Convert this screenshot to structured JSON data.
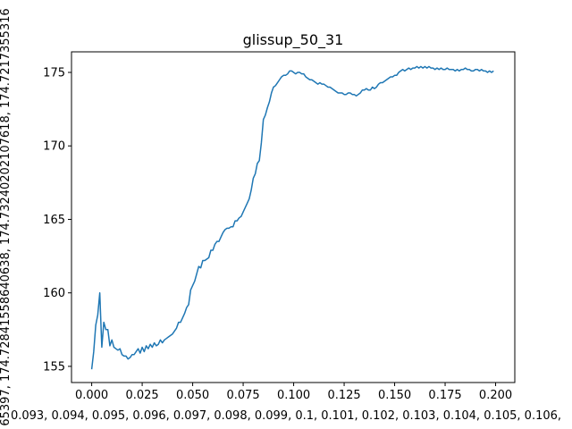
{
  "chart_data": {
    "type": "line",
    "title": "glissup_50_31",
    "xlabel": "0.093, 0.094, 0.095, 0.096, 0.097, 0.098, 0.099, 0.1, 0.101, 0.102, 0.103, 0.104, 0.105, 0.106,",
    "ylabel": "65397, 174.72841558640638, 174.73240202107618, 174.7217355316",
    "xlim": [
      -0.01,
      0.2095
    ],
    "ylim": [
      153.9,
      176.4
    ],
    "xticks": [
      "0.000",
      "0.025",
      "0.050",
      "0.075",
      "0.100",
      "0.125",
      "0.150",
      "0.175",
      "0.200"
    ],
    "yticks": [
      "155",
      "160",
      "165",
      "170",
      "175"
    ],
    "grid": false,
    "color": "#1f77b4",
    "series": [
      {
        "x": [
          0.0,
          0.001,
          0.002,
          0.003,
          0.004,
          0.005,
          0.006,
          0.007,
          0.008,
          0.009,
          0.01,
          0.011,
          0.012,
          0.013,
          0.014,
          0.015,
          0.016,
          0.017,
          0.018,
          0.019,
          0.02,
          0.021,
          0.022,
          0.023,
          0.024,
          0.025,
          0.026,
          0.027,
          0.028,
          0.029,
          0.03,
          0.031,
          0.032,
          0.033,
          0.034,
          0.035,
          0.036,
          0.037,
          0.038,
          0.039,
          0.04,
          0.041,
          0.042,
          0.043,
          0.044,
          0.045,
          0.046,
          0.047,
          0.048,
          0.049,
          0.05,
          0.051,
          0.052,
          0.053,
          0.054,
          0.055,
          0.056,
          0.057,
          0.058,
          0.059,
          0.06,
          0.061,
          0.062,
          0.063,
          0.064,
          0.065,
          0.066,
          0.067,
          0.068,
          0.069,
          0.07,
          0.071,
          0.072,
          0.073,
          0.074,
          0.075,
          0.076,
          0.077,
          0.078,
          0.079,
          0.08,
          0.081,
          0.082,
          0.083,
          0.084,
          0.085,
          0.086,
          0.087,
          0.088,
          0.089,
          0.09,
          0.091,
          0.092,
          0.093,
          0.094,
          0.095,
          0.096,
          0.097,
          0.098,
          0.099,
          0.1,
          0.101,
          0.102,
          0.103,
          0.104,
          0.105,
          0.106,
          0.107,
          0.108,
          0.109,
          0.11,
          0.111,
          0.112,
          0.113,
          0.114,
          0.115,
          0.116,
          0.117,
          0.118,
          0.119,
          0.12,
          0.121,
          0.122,
          0.123,
          0.124,
          0.125,
          0.126,
          0.127,
          0.128,
          0.129,
          0.13,
          0.131,
          0.132,
          0.133,
          0.134,
          0.135,
          0.136,
          0.137,
          0.138,
          0.139,
          0.14,
          0.141,
          0.142,
          0.143,
          0.144,
          0.145,
          0.146,
          0.147,
          0.148,
          0.149,
          0.15,
          0.151,
          0.152,
          0.153,
          0.154,
          0.155,
          0.156,
          0.157,
          0.158,
          0.159,
          0.16,
          0.161,
          0.162,
          0.163,
          0.164,
          0.165,
          0.166,
          0.167,
          0.168,
          0.169,
          0.17,
          0.171,
          0.172,
          0.173,
          0.174,
          0.175,
          0.176,
          0.177,
          0.178,
          0.179,
          0.18,
          0.181,
          0.182,
          0.183,
          0.184,
          0.185,
          0.186,
          0.187,
          0.188,
          0.189,
          0.19,
          0.191,
          0.192,
          0.193,
          0.194,
          0.195,
          0.196,
          0.197,
          0.198,
          0.199
        ],
        "y": [
          154.8,
          156.0,
          157.8,
          158.5,
          160.0,
          156.3,
          158.0,
          157.5,
          157.5,
          156.4,
          156.8,
          156.3,
          156.2,
          156.1,
          156.2,
          155.8,
          155.7,
          155.7,
          155.5,
          155.6,
          155.8,
          155.8,
          156.0,
          156.2,
          155.9,
          156.3,
          156.0,
          156.4,
          156.2,
          156.5,
          156.3,
          156.6,
          156.4,
          156.5,
          156.8,
          156.6,
          156.8,
          156.9,
          157.0,
          157.1,
          157.2,
          157.4,
          157.6,
          158.0,
          158.0,
          158.3,
          158.6,
          159.0,
          159.2,
          160.2,
          160.5,
          160.8,
          161.3,
          161.8,
          161.7,
          162.2,
          162.2,
          162.3,
          162.4,
          162.9,
          162.9,
          163.3,
          163.5,
          163.5,
          163.8,
          164.1,
          164.3,
          164.4,
          164.4,
          164.5,
          164.5,
          164.9,
          164.9,
          165.1,
          165.2,
          165.5,
          165.8,
          166.1,
          166.4,
          167.0,
          167.8,
          168.1,
          168.8,
          169.0,
          170.2,
          171.8,
          172.1,
          172.6,
          173.0,
          173.6,
          174.0,
          174.1,
          174.3,
          174.5,
          174.7,
          174.8,
          174.8,
          174.9,
          175.1,
          175.1,
          175.0,
          174.9,
          175.0,
          175.0,
          174.9,
          174.9,
          174.7,
          174.6,
          174.5,
          174.5,
          174.4,
          174.3,
          174.2,
          174.3,
          174.2,
          174.2,
          174.1,
          174.0,
          174.0,
          173.9,
          173.8,
          173.7,
          173.6,
          173.6,
          173.6,
          173.5,
          173.5,
          173.6,
          173.6,
          173.5,
          173.5,
          173.4,
          173.5,
          173.6,
          173.8,
          173.8,
          173.9,
          173.8,
          173.8,
          174.0,
          173.9,
          174.0,
          174.2,
          174.3,
          174.3,
          174.4,
          174.5,
          174.6,
          174.7,
          174.7,
          174.8,
          174.8,
          175.0,
          175.1,
          175.2,
          175.1,
          175.2,
          175.3,
          175.2,
          175.3,
          175.3,
          175.4,
          175.3,
          175.4,
          175.3,
          175.4,
          175.3,
          175.4,
          175.3,
          175.3,
          175.2,
          175.3,
          175.2,
          175.3,
          175.2,
          175.2,
          175.3,
          175.2,
          175.2,
          175.2,
          175.1,
          175.2,
          175.1,
          175.2,
          175.2,
          175.3,
          175.2,
          175.2,
          175.1,
          175.1,
          175.2,
          175.2,
          175.1,
          175.2,
          175.1,
          175.1,
          175.0,
          175.1,
          175.0,
          175.1
        ]
      }
    ]
  }
}
